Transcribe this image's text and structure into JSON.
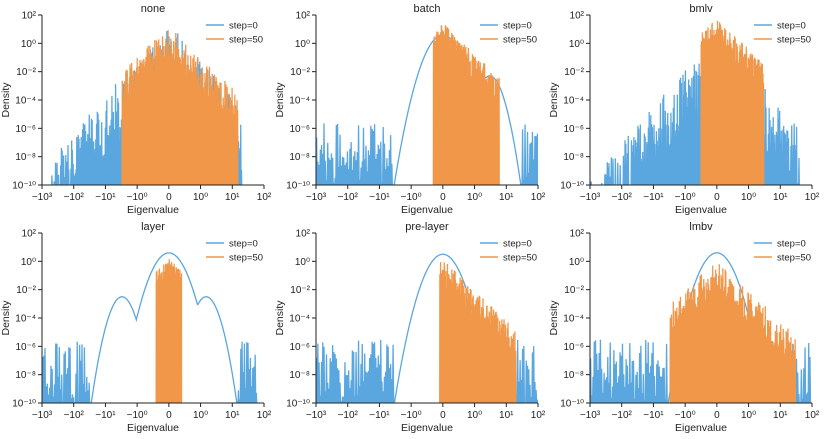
{
  "chart_data": {
    "type": "line",
    "layout": "2x3 small multiples",
    "x_ticks": [
      "−10³",
      "−10²",
      "−10¹",
      "−10⁰",
      "0",
      "10⁰",
      "10¹",
      "10²"
    ],
    "y_ticks": [
      "10⁻¹⁰",
      "10⁻⁸",
      "10⁻⁶",
      "10⁻⁴",
      "10⁻²",
      "10⁰",
      "10²"
    ],
    "xlabel": "Eigenvalue",
    "ylabel": "Density",
    "yscale": "log",
    "ylim_exponent": [
      -10,
      2
    ],
    "xscale": "symlog",
    "xlim": [
      -1000,
      100
    ],
    "grid": false,
    "legend": "top-right",
    "colors": {
      "step0": "#5aa7e0",
      "step50": "#f0974a"
    },
    "panels": [
      {
        "title": "none",
        "series": [
          {
            "name": "step=0",
            "style": "spiky",
            "spike_range": [
              -500,
              20
            ],
            "peak_log": 1.5,
            "noise_floor_log": -9.5
          },
          {
            "name": "step=50",
            "style": "spiky-dense",
            "spike_range": [
              -3,
              15
            ],
            "peak_log": 1.3,
            "noise_floor_log": -6.5
          }
        ]
      },
      {
        "title": "batch",
        "series": [
          {
            "name": "step=0",
            "style": "humps",
            "peak_log": 0.6,
            "humps": [
              {
                "x": -0.2,
                "log": -2.0
              },
              {
                "x": 3.0,
                "log": -2.3
              }
            ],
            "spike_range": [
              -1000,
              100
            ]
          },
          {
            "name": "step=50",
            "style": "spiky-dense",
            "spike_range": [
              -0.3,
              6
            ],
            "peak_log": 1.5,
            "noise_floor_log": -7
          }
        ]
      },
      {
        "title": "bmlv",
        "series": [
          {
            "name": "step=0",
            "style": "spiky",
            "spike_range": [
              -1000,
              40
            ],
            "peak_log": 0.8,
            "noise_floor_log": -9.5
          },
          {
            "name": "step=50",
            "style": "spiky-dense",
            "spike_range": [
              -0.5,
              3
            ],
            "peak_log": 1.8,
            "noise_floor_log": -6
          }
        ]
      },
      {
        "title": "layer",
        "series": [
          {
            "name": "step=0",
            "style": "humps",
            "peak_log": 0.6,
            "humps": [
              {
                "x": -3.0,
                "log": -2.5
              },
              {
                "x": 1.5,
                "log": -2.5
              }
            ],
            "spike_range": [
              -1000,
              60
            ]
          },
          {
            "name": "step=50",
            "style": "spiky-dense",
            "spike_range": [
              -0.4,
              0.4
            ],
            "peak_log": 0.2,
            "noise_floor_log": -9
          }
        ]
      },
      {
        "title": "pre-layer",
        "series": [
          {
            "name": "step=0",
            "style": "humps",
            "peak_log": 0.5,
            "humps": [
              {
                "x": -0.5,
                "log": -3.3
              },
              {
                "x": 0.8,
                "log": -3.3
              }
            ],
            "spike_range": [
              -1000,
              100
            ]
          },
          {
            "name": "step=50",
            "style": "spiky-dense",
            "spike_range": [
              -0.1,
              20
            ],
            "peak_log": 0.2,
            "noise_floor_log": -7
          }
        ]
      },
      {
        "title": "lmbv",
        "series": [
          {
            "name": "step=0",
            "style": "humps",
            "peak_log": 0.6,
            "humps": [],
            "spike_range": [
              -1000,
              90
            ]
          },
          {
            "name": "step=50",
            "style": "spiky-dense",
            "spike_range": [
              -3,
              30
            ],
            "peak_log": 0.2,
            "noise_floor_log": -7
          }
        ]
      }
    ]
  }
}
